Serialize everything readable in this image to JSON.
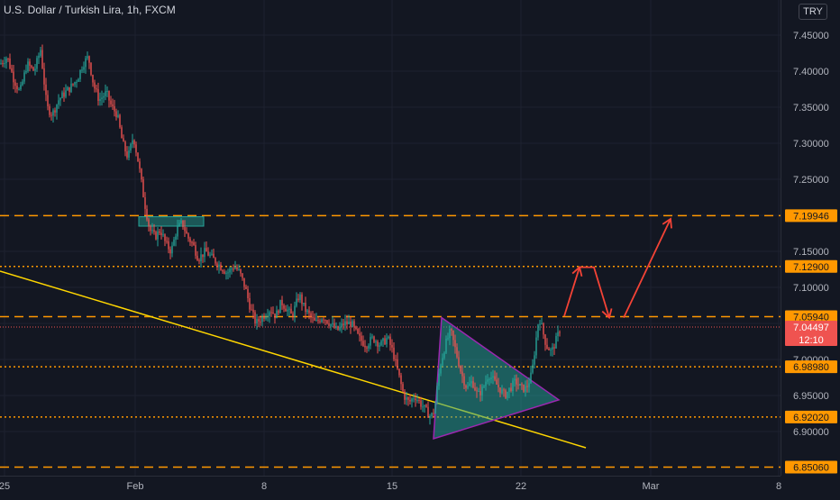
{
  "header": {
    "title": "U.S. Dollar / Turkish Lira, 1h, FXCM",
    "symbol": "TRY"
  },
  "chart_data": {
    "type": "candlestick",
    "title": "U.S. Dollar / Turkish Lira, 1h, FXCM",
    "x_ticks": [
      "25",
      "Feb",
      "8",
      "15",
      "22",
      "Mar",
      "8"
    ],
    "y_ticks": [
      "6.90000",
      "6.95000",
      "7.00000",
      "7.05000",
      "7.10000",
      "7.15000",
      "7.20000",
      "7.25000",
      "7.30000",
      "7.35000",
      "7.40000",
      "7.45000"
    ],
    "ylim": [
      6.835,
      7.48
    ],
    "price_path": [
      [
        0,
        7.41
      ],
      [
        8,
        7.42
      ],
      [
        15,
        7.39
      ],
      [
        22,
        7.37
      ],
      [
        30,
        7.41
      ],
      [
        38,
        7.4
      ],
      [
        45,
        7.43
      ],
      [
        52,
        7.35
      ],
      [
        58,
        7.34
      ],
      [
        65,
        7.36
      ],
      [
        72,
        7.37
      ],
      [
        80,
        7.38
      ],
      [
        86,
        7.39
      ],
      [
        92,
        7.41
      ],
      [
        98,
        7.42
      ],
      [
        104,
        7.38
      ],
      [
        110,
        7.36
      ],
      [
        118,
        7.37
      ],
      [
        124,
        7.35
      ],
      [
        130,
        7.34
      ],
      [
        136,
        7.3
      ],
      [
        142,
        7.28
      ],
      [
        148,
        7.31
      ],
      [
        154,
        7.27
      ],
      [
        160,
        7.22
      ],
      [
        166,
        7.18
      ],
      [
        172,
        7.17
      ],
      [
        178,
        7.18
      ],
      [
        184,
        7.16
      ],
      [
        190,
        7.15
      ],
      [
        196,
        7.18
      ],
      [
        202,
        7.19
      ],
      [
        208,
        7.17
      ],
      [
        214,
        7.16
      ],
      [
        220,
        7.14
      ],
      [
        228,
        7.15
      ],
      [
        236,
        7.14
      ],
      [
        244,
        7.13
      ],
      [
        252,
        7.12
      ],
      [
        260,
        7.13
      ],
      [
        266,
        7.12
      ],
      [
        272,
        7.1
      ],
      [
        278,
        7.07
      ],
      [
        284,
        7.05
      ],
      [
        292,
        7.06
      ],
      [
        300,
        7.07
      ],
      [
        306,
        7.06
      ],
      [
        312,
        7.08
      ],
      [
        318,
        7.07
      ],
      [
        324,
        7.06
      ],
      [
        332,
        7.09
      ],
      [
        338,
        7.07
      ],
      [
        344,
        7.06
      ],
      [
        350,
        7.05
      ],
      [
        358,
        7.06
      ],
      [
        366,
        7.05
      ],
      [
        374,
        7.04
      ],
      [
        382,
        7.05
      ],
      [
        390,
        7.05
      ],
      [
        398,
        7.03
      ],
      [
        406,
        7.02
      ],
      [
        414,
        7.03
      ],
      [
        422,
        7.02
      ],
      [
        430,
        7.03
      ],
      [
        436,
        7.01
      ],
      [
        442,
        6.98
      ],
      [
        448,
        6.95
      ],
      [
        454,
        6.94
      ],
      [
        460,
        6.95
      ],
      [
        466,
        6.94
      ],
      [
        472,
        6.93
      ],
      [
        478,
        6.92
      ],
      [
        482,
        6.93
      ],
      [
        488,
        6.99
      ],
      [
        494,
        7.02
      ],
      [
        500,
        7.04
      ],
      [
        506,
        7.01
      ],
      [
        512,
        6.98
      ],
      [
        518,
        6.96
      ],
      [
        524,
        6.97
      ],
      [
        530,
        6.95
      ],
      [
        536,
        6.96
      ],
      [
        542,
        6.98
      ],
      [
        548,
        6.97
      ],
      [
        554,
        6.96
      ],
      [
        560,
        6.95
      ],
      [
        566,
        6.96
      ],
      [
        572,
        6.97
      ],
      [
        578,
        6.96
      ],
      [
        584,
        6.96
      ],
      [
        590,
        6.98
      ],
      [
        594,
        7.02
      ],
      [
        598,
        7.06
      ],
      [
        602,
        7.04
      ],
      [
        606,
        7.02
      ],
      [
        612,
        7.01
      ],
      [
        618,
        7.03
      ],
      [
        622,
        7.045
      ]
    ],
    "horizontal_levels": [
      {
        "value": 7.19946,
        "label": "7.19946",
        "style": "dashed",
        "color": "#ff9800"
      },
      {
        "value": 7.129,
        "label": "7.12900",
        "style": "dotted",
        "color": "#ff9800"
      },
      {
        "value": 7.0594,
        "label": "7.05940",
        "style": "dashed",
        "color": "#ff9800"
      },
      {
        "value": 6.9898,
        "label": "6.98980",
        "style": "dotted",
        "color": "#ff9800"
      },
      {
        "value": 6.9202,
        "label": "6.92020",
        "style": "dotted",
        "color": "#ff9800"
      },
      {
        "value": 6.8506,
        "label": "6.85060",
        "style": "dashed",
        "color": "#ff9800"
      }
    ],
    "current_price": {
      "value": 7.04497,
      "label": "7.04497",
      "countdown": "12:10",
      "color": "#ef5350"
    },
    "trendline": {
      "color": "#ffd600",
      "x1": 0,
      "y1": 7.1225,
      "x2": 650,
      "y2": 6.8775
    },
    "rectangle": {
      "color": "#26a69a",
      "x1": 154,
      "y1": 7.198,
      "x2": 226,
      "y2": 7.185
    },
    "triangle": {
      "color": "#9c27b0",
      "fill": "#26a69a",
      "points": [
        [
          490,
          7.058
        ],
        [
          620,
          6.944
        ],
        [
          481,
          6.89
        ]
      ]
    },
    "projection": {
      "color": "#f44336",
      "points": [
        [
          626,
          7.06
        ],
        [
          643,
          7.128
        ],
        [
          659,
          7.128
        ],
        [
          676,
          7.058
        ],
        [
          692,
          7.058
        ],
        [
          744,
          7.195
        ]
      ]
    }
  }
}
